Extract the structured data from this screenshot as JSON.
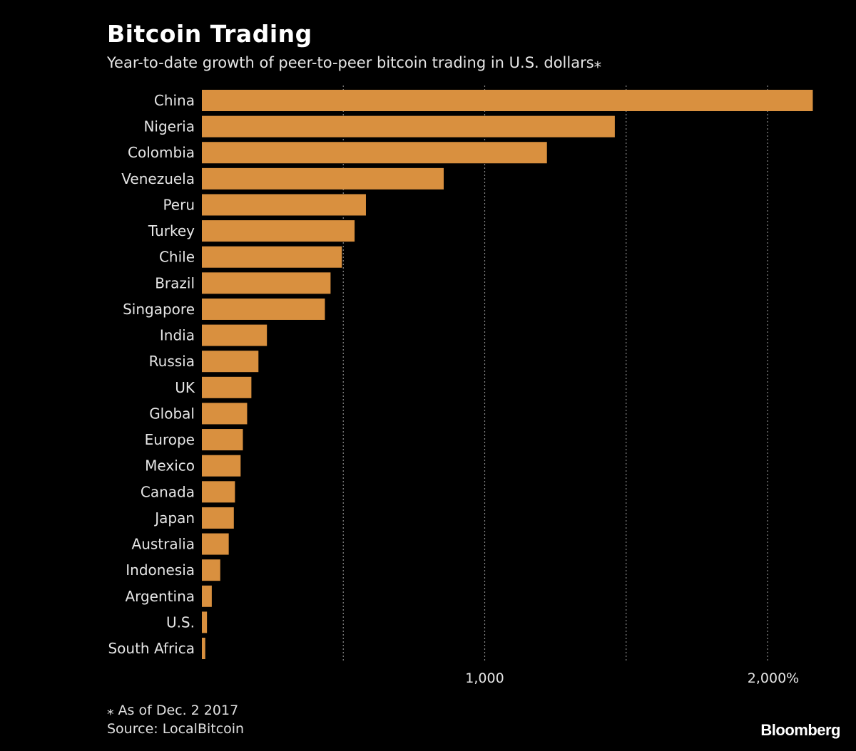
{
  "header": {
    "title": "Bitcoin Trading",
    "subtitle": "Year-to-date growth of peer-to-peer bitcoin trading in U.S. dollars⁎"
  },
  "footer": {
    "footnote": "⁎ As of Dec. 2 2017",
    "source": "Source: LocalBitcoin",
    "logo": "Bloomberg"
  },
  "colors": {
    "background": "#000000",
    "bar": "#D9903F",
    "gridline": "#8a8a8a"
  },
  "chart_data": {
    "type": "bar",
    "orientation": "horizontal",
    "categories": [
      "China",
      "Nigeria",
      "Colombia",
      "Venezuela",
      "Peru",
      "Turkey",
      "Chile",
      "Brazil",
      "Singapore",
      "India",
      "Russia",
      "UK",
      "Global",
      "Europe",
      "Mexico",
      "Canada",
      "Japan",
      "Australia",
      "Indonesia",
      "Argentina",
      "U.S.",
      "South Africa"
    ],
    "values": [
      2160,
      1460,
      1220,
      855,
      580,
      540,
      495,
      455,
      435,
      230,
      200,
      175,
      160,
      145,
      137,
      117,
      113,
      95,
      65,
      35,
      18,
      12
    ],
    "xlim": [
      0,
      2200
    ],
    "ticks": [
      {
        "value": 1000,
        "label": "1,000"
      },
      {
        "value": 2000,
        "label": "2,000%"
      }
    ],
    "gridlines": [
      500,
      1000,
      1500,
      2000
    ],
    "grid": true,
    "legend": false
  }
}
